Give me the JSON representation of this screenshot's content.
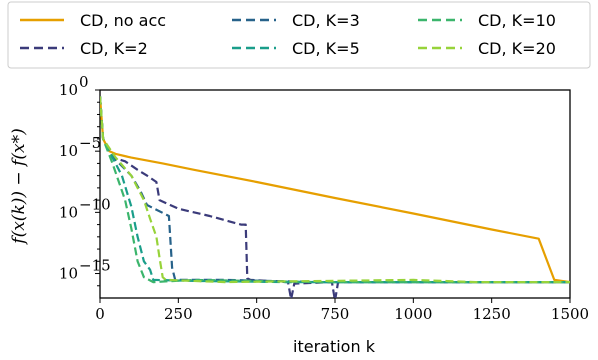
{
  "chart_data": {
    "type": "line",
    "xlabel": "iteration k",
    "ylabel": "f(x(k)) − f(x*)",
    "xlim": [
      0,
      1500
    ],
    "ylim": [
      1e-17,
      1
    ],
    "yscale": "log",
    "xticks": [
      0,
      250,
      500,
      750,
      1000,
      1250,
      1500
    ],
    "yticks": [
      {
        "value": 1,
        "label": "10^0",
        "base": "10",
        "exp": "0"
      },
      {
        "value": 1e-05,
        "label": "10^-5",
        "base": "10",
        "exp": "−5"
      },
      {
        "value": 1e-10,
        "label": "10^-10",
        "base": "10",
        "exp": "−10"
      },
      {
        "value": 1e-15,
        "label": "10^-15",
        "base": "10",
        "exp": "−15"
      }
    ],
    "grid": false,
    "legend_position": "top",
    "series": [
      {
        "name": "CD, no acc",
        "color": "#e69f00",
        "dash": "solid",
        "points": [
          [
            0,
            0.3
          ],
          [
            10,
            0.0001
          ],
          [
            30,
            1e-05
          ],
          [
            50,
            6e-06
          ],
          [
            100,
            3e-06
          ],
          [
            200,
            1e-06
          ],
          [
            300,
            3e-07
          ],
          [
            500,
            3e-08
          ],
          [
            750,
            1.5e-09
          ],
          [
            1000,
            8e-11
          ],
          [
            1250,
            4e-12
          ],
          [
            1400,
            7e-13
          ],
          [
            1450,
            3e-16
          ],
          [
            1500,
            2e-16
          ]
        ]
      },
      {
        "name": "CD, K=2",
        "color": "#3b3b7a",
        "dash": "dashed",
        "points": [
          [
            0,
            0.3
          ],
          [
            10,
            0.0001
          ],
          [
            40,
            3e-06
          ],
          [
            80,
            1.5e-06
          ],
          [
            120,
            3e-07
          ],
          [
            150,
            1e-07
          ],
          [
            180,
            3e-08
          ],
          [
            190,
            1e-09
          ],
          [
            250,
            2e-10
          ],
          [
            350,
            5e-11
          ],
          [
            450,
            1e-11
          ],
          [
            465,
            1e-11
          ],
          [
            470,
            4e-16
          ],
          [
            480,
            3e-16
          ],
          [
            600,
            2e-16
          ],
          [
            610,
            8e-18
          ],
          [
            620,
            1.5e-16
          ],
          [
            740,
            2e-16
          ],
          [
            750,
            6e-18
          ],
          [
            760,
            2e-16
          ],
          [
            1000,
            2e-16
          ],
          [
            1250,
            2e-16
          ],
          [
            1500,
            2e-16
          ]
        ]
      },
      {
        "name": "CD, K=3",
        "color": "#27628a",
        "dash": "dashed",
        "points": [
          [
            0,
            0.3
          ],
          [
            10,
            0.0001
          ],
          [
            50,
            2e-06
          ],
          [
            100,
            1e-07
          ],
          [
            130,
            5e-09
          ],
          [
            150,
            4e-10
          ],
          [
            220,
            5e-11
          ],
          [
            230,
            3e-15
          ],
          [
            240,
            3e-16
          ],
          [
            400,
            3e-16
          ],
          [
            700,
            2e-16
          ],
          [
            1000,
            2e-16
          ],
          [
            1500,
            2e-16
          ]
        ]
      },
      {
        "name": "CD, K=5",
        "color": "#1a9e8a",
        "dash": "dashed",
        "points": [
          [
            0,
            0.3
          ],
          [
            10,
            0.0001
          ],
          [
            40,
            3e-06
          ],
          [
            70,
            1e-07
          ],
          [
            100,
            3e-10
          ],
          [
            120,
            1e-12
          ],
          [
            140,
            1e-14
          ],
          [
            160,
            2e-15
          ],
          [
            170,
            3e-16
          ],
          [
            300,
            2.5e-16
          ],
          [
            600,
            2e-16
          ],
          [
            1000,
            2e-16
          ],
          [
            1500,
            2e-16
          ]
        ]
      },
      {
        "name": "CD, K=10",
        "color": "#3bb56c",
        "dash": "dashed",
        "points": [
          [
            0,
            0.3
          ],
          [
            10,
            0.0001
          ],
          [
            40,
            1e-06
          ],
          [
            80,
            1e-09
          ],
          [
            100,
            5e-12
          ],
          [
            120,
            1e-14
          ],
          [
            140,
            5e-16
          ],
          [
            170,
            2e-16
          ],
          [
            300,
            3e-16
          ],
          [
            700,
            2e-16
          ],
          [
            1000,
            2e-16
          ],
          [
            1500,
            2e-16
          ]
        ]
      },
      {
        "name": "CD, K=20",
        "color": "#97d33a",
        "dash": "dashed",
        "points": [
          [
            0,
            0.3
          ],
          [
            10,
            0.0001
          ],
          [
            50,
            3e-06
          ],
          [
            100,
            1e-07
          ],
          [
            140,
            1e-09
          ],
          [
            160,
            3e-11
          ],
          [
            180,
            1e-12
          ],
          [
            190,
            2e-14
          ],
          [
            200,
            5e-16
          ],
          [
            210,
            3e-16
          ],
          [
            400,
            2e-16
          ],
          [
            1000,
            3e-16
          ],
          [
            1200,
            2e-16
          ],
          [
            1500,
            2e-16
          ]
        ]
      }
    ]
  }
}
